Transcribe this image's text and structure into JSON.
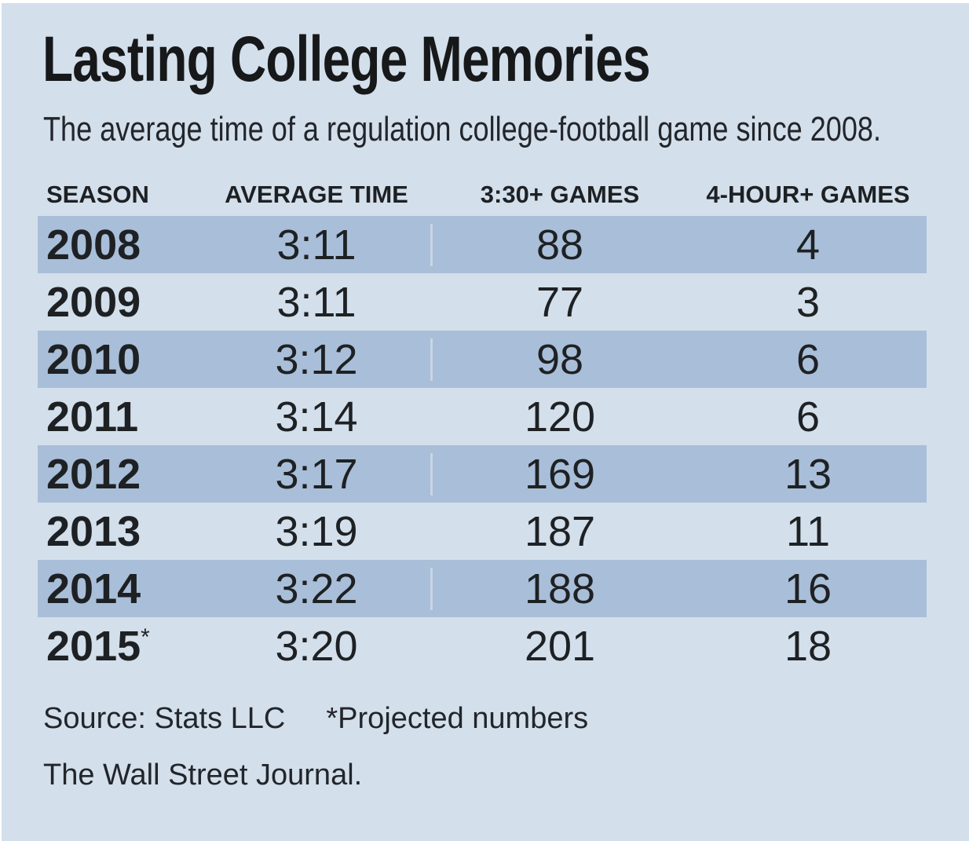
{
  "title": "Lasting College Memories",
  "subtitle": "The average time of a regulation college-football game since 2008.",
  "table": {
    "columns": [
      "SEASON",
      "AVERAGE TIME",
      "3:30+ GAMES",
      "4-HOUR+ GAMES"
    ],
    "rows": [
      {
        "season": "2008",
        "suffix": "",
        "avg_time": "3:11",
        "games_330": "88",
        "games_4hr": "4"
      },
      {
        "season": "2009",
        "suffix": "",
        "avg_time": "3:11",
        "games_330": "77",
        "games_4hr": "3"
      },
      {
        "season": "2010",
        "suffix": "",
        "avg_time": "3:12",
        "games_330": "98",
        "games_4hr": "6"
      },
      {
        "season": "2011",
        "suffix": "",
        "avg_time": "3:14",
        "games_330": "120",
        "games_4hr": "6"
      },
      {
        "season": "2012",
        "suffix": "",
        "avg_time": "3:17",
        "games_330": "169",
        "games_4hr": "13"
      },
      {
        "season": "2013",
        "suffix": "",
        "avg_time": "3:19",
        "games_330": "187",
        "games_4hr": "11"
      },
      {
        "season": "2014",
        "suffix": "",
        "avg_time": "3:22",
        "games_330": "188",
        "games_4hr": "16"
      },
      {
        "season": "2015",
        "suffix": "*",
        "avg_time": "3:20",
        "games_330": "201",
        "games_4hr": "18"
      }
    ]
  },
  "footer": {
    "source": "Source: Stats LLC",
    "note": "*Projected numbers",
    "credit": "The Wall Street Journal."
  },
  "colors": {
    "background": "#d3dfeb",
    "row_shade": "#a9bed8",
    "text": "#1e2124"
  },
  "chart_data": {
    "type": "table",
    "title": "Lasting College Memories",
    "subtitle": "The average time of a regulation college-football game since 2008.",
    "columns": [
      "SEASON",
      "AVERAGE TIME",
      "3:30+ GAMES",
      "4-HOUR+ GAMES"
    ],
    "rows": [
      [
        "2008",
        "3:11",
        88,
        4
      ],
      [
        "2009",
        "3:11",
        77,
        3
      ],
      [
        "2010",
        "3:12",
        98,
        6
      ],
      [
        "2011",
        "3:14",
        120,
        6
      ],
      [
        "2012",
        "3:17",
        169,
        13
      ],
      [
        "2013",
        "3:19",
        187,
        11
      ],
      [
        "2014",
        "3:22",
        188,
        16
      ],
      [
        "2015*",
        "3:20",
        201,
        18
      ]
    ],
    "notes": [
      "Source: Stats LLC",
      "*Projected numbers",
      "The Wall Street Journal."
    ],
    "layout": {
      "shaded_rows": [
        0,
        2,
        4,
        6
      ],
      "grid": "off",
      "legend": "none"
    }
  }
}
